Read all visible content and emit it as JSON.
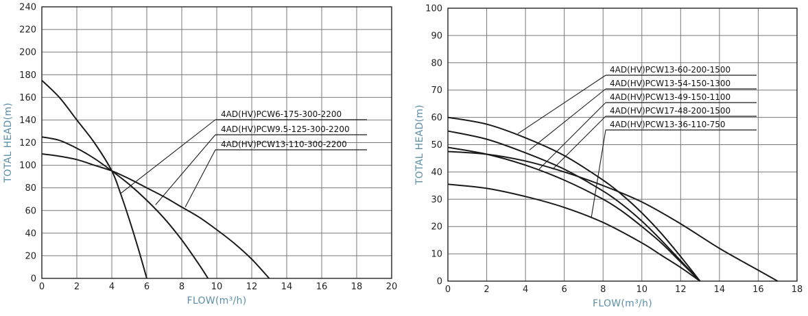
{
  "chart_data": [
    {
      "type": "line",
      "xlabel": "FLOW(m³/h)",
      "ylabel": "TOTAL HEAD(m)",
      "xlim": [
        0,
        20
      ],
      "ylim": [
        0,
        240
      ],
      "xticks": [
        0,
        2,
        4,
        6,
        8,
        10,
        12,
        14,
        16,
        18,
        20
      ],
      "yticks": [
        0,
        20,
        40,
        60,
        80,
        100,
        120,
        140,
        160,
        180,
        200,
        220,
        240
      ],
      "grid": true,
      "legend": "top-right, leader lines to curves",
      "series": [
        {
          "name": "4AD(HV)PCW6-175-300-2200",
          "x": [
            0,
            1,
            2,
            3,
            4,
            4.5,
            5,
            5.5,
            6
          ],
          "y": [
            175,
            160,
            140,
            120,
            95,
            75,
            52,
            27,
            0
          ],
          "anchor": [
            4.5,
            75
          ]
        },
        {
          "name": "4AD(HV)PCW9.5-125-300-2200",
          "x": [
            0,
            1,
            2,
            3,
            4,
            5,
            6,
            7,
            8,
            9,
            9.5
          ],
          "y": [
            125,
            122,
            115,
            106,
            95,
            83,
            69,
            53,
            34,
            12,
            0
          ],
          "anchor": [
            6.5,
            65
          ]
        },
        {
          "name": "4AD(HV)PCW13-110-300-2200",
          "x": [
            0,
            1,
            2,
            3,
            4,
            5,
            6,
            7,
            8,
            9,
            10,
            11,
            12,
            13
          ],
          "y": [
            110,
            108,
            105,
            100,
            95,
            88,
            80,
            72,
            63,
            54,
            43,
            31,
            17,
            0
          ],
          "anchor": [
            8.2,
            63
          ]
        }
      ]
    },
    {
      "type": "line",
      "xlabel": "FLOW(m³/h)",
      "ylabel": "TOTAL HEAD(m)",
      "xlim": [
        0,
        18
      ],
      "ylim": [
        0,
        100
      ],
      "xticks": [
        0,
        2,
        4,
        6,
        8,
        10,
        12,
        14,
        16,
        18
      ],
      "yticks": [
        0,
        10,
        20,
        30,
        40,
        50,
        60,
        70,
        80,
        90,
        100
      ],
      "grid": true,
      "legend": "top-right, leader lines to curves",
      "series": [
        {
          "name": "4AD(HV)PCW13-60-200-1500",
          "x": [
            0,
            2,
            4,
            6,
            8,
            9,
            10,
            11,
            12,
            13
          ],
          "y": [
            60,
            57.5,
            52.5,
            46,
            37,
            31.5,
            25,
            17.5,
            9,
            0
          ],
          "anchor": [
            3.6,
            54
          ]
        },
        {
          "name": "4AD(HV)PCW13-54-150-1300",
          "x": [
            0,
            2,
            4,
            6,
            8,
            9,
            10,
            11,
            12,
            13
          ],
          "y": [
            55,
            52,
            47,
            41,
            33,
            28,
            22,
            15,
            7.5,
            0
          ],
          "anchor": [
            4.2,
            48
          ]
        },
        {
          "name": "4AD(HV)PCW13-49-150-1100",
          "x": [
            0,
            2,
            4,
            6,
            8,
            9,
            10,
            11,
            12,
            13
          ],
          "y": [
            49,
            46.5,
            42.5,
            37,
            30,
            25.5,
            20,
            14,
            7,
            0
          ],
          "anchor": [
            4.7,
            41
          ]
        },
        {
          "name": "4AD(HV)PCW17-48-200-1500",
          "x": [
            0,
            2,
            4,
            6,
            8,
            10,
            12,
            14,
            16,
            17
          ],
          "y": [
            47.5,
            46.5,
            44,
            40,
            35,
            29,
            21,
            12,
            4,
            0
          ],
          "anchor": [
            5.4,
            41
          ]
        },
        {
          "name": "4AD(HV)PCW13-36-110-750",
          "x": [
            0,
            2,
            4,
            6,
            8,
            10,
            11,
            12,
            13
          ],
          "y": [
            35.5,
            34,
            31,
            27,
            21.5,
            14,
            9.5,
            5,
            0
          ],
          "anchor": [
            7.4,
            23.5
          ]
        }
      ]
    }
  ]
}
